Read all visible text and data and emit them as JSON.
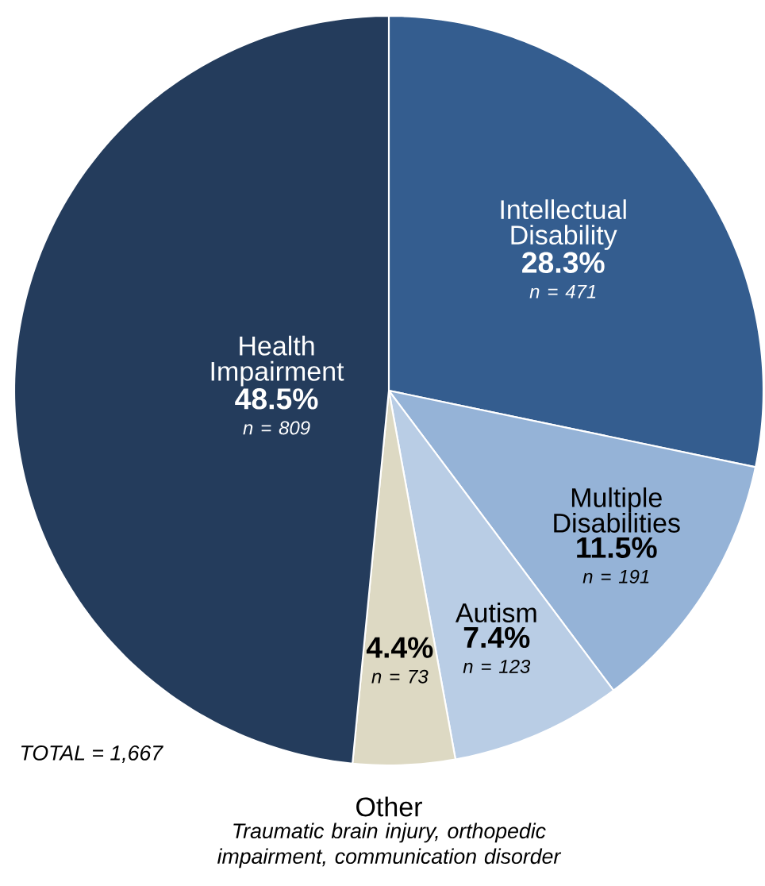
{
  "chart_data": {
    "type": "pie",
    "categories": [
      "Intellectual Disability",
      "Multiple Disabilities",
      "Autism",
      "Other",
      "Health Impairment"
    ],
    "values": [
      28.3,
      11.5,
      7.4,
      4.4,
      48.5
    ],
    "value_labels": [
      "28.3%",
      "11.5%",
      "7.4%",
      "4.4%",
      "48.5%"
    ],
    "colors": [
      "#345d8f",
      "#95b3d7",
      "#b9cde5",
      "#ddd9c3",
      "#243c5c"
    ],
    "annotations": [
      "n = 471",
      "n = 191",
      "n = 123",
      "n = 73",
      "n = 809",
      "TOTAL = 1,667",
      "Traumatic brain injury, orthopedic impairment, communication disorder"
    ]
  }
}
